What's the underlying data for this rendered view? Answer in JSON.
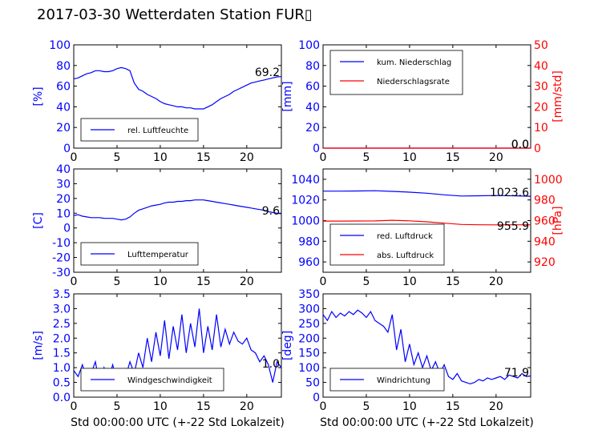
{
  "figure": {
    "title": "2017-03-30 Wetterdaten Station FUR▯",
    "xlabel": "Std 00:00:00 UTC (+-22 Std Lokalzeit)"
  },
  "chart_data": [
    {
      "id": "humidity",
      "type": "line",
      "ylabel": "[%]",
      "ylim": [
        0,
        100
      ],
      "yticks": [
        0,
        20,
        40,
        60,
        80,
        100
      ],
      "xlim": [
        0,
        24
      ],
      "xticks": [
        0,
        5,
        10,
        15,
        20
      ],
      "legend": "bottom-left",
      "last_value_label": "69.2",
      "series": [
        {
          "name": "rel. Luftfeuchte",
          "color": "#0000ff",
          "axis": "left",
          "x": [
            0,
            0.5,
            1,
            1.5,
            2,
            2.5,
            3,
            3.5,
            4,
            4.5,
            5,
            5.5,
            6,
            6.5,
            7,
            7.5,
            8,
            8.5,
            9,
            9.5,
            10,
            10.5,
            11,
            11.5,
            12,
            12.5,
            13,
            13.5,
            14,
            14.5,
            15,
            15.5,
            16,
            16.5,
            17,
            17.5,
            18,
            18.5,
            19,
            19.5,
            20,
            20.5,
            21,
            21.5,
            22,
            22.5,
            23,
            23.5,
            24
          ],
          "y": [
            67,
            68,
            70,
            72,
            73,
            75,
            75,
            74,
            74,
            75,
            77,
            78,
            77,
            75,
            63,
            57,
            55,
            52,
            50,
            48,
            45,
            43,
            42,
            41,
            40,
            40,
            39,
            39,
            38,
            38,
            38,
            40,
            42,
            45,
            48,
            50,
            52,
            55,
            57,
            59,
            61,
            63,
            64,
            65,
            66,
            67,
            68,
            69,
            69.2
          ]
        }
      ]
    },
    {
      "id": "precipitation",
      "type": "line",
      "ylabel": "[mm]",
      "ylabel_right": "[mm/std]",
      "ylim": [
        0,
        100
      ],
      "yticks": [
        0,
        20,
        40,
        60,
        80,
        100
      ],
      "ylim_right": [
        0,
        50
      ],
      "yticks_right": [
        0,
        10,
        20,
        30,
        40,
        50
      ],
      "xlim": [
        0,
        24
      ],
      "xticks": [
        0,
        5,
        10,
        15,
        20
      ],
      "legend": "top-left",
      "last_value_label": "0.0",
      "last_value_label_right": "0.0",
      "series": [
        {
          "name": "kum. Niederschlag",
          "color": "#0000ff",
          "axis": "left",
          "x": [
            0,
            24
          ],
          "y": [
            0,
            0
          ]
        },
        {
          "name": "Niederschlagsrate",
          "color": "#ff0000",
          "axis": "right",
          "x": [
            0,
            24
          ],
          "y": [
            0,
            0
          ]
        }
      ]
    },
    {
      "id": "temperature",
      "type": "line",
      "ylabel": "[C]",
      "ylim": [
        -30,
        40
      ],
      "yticks": [
        -30,
        -20,
        -10,
        0,
        10,
        20,
        30,
        40
      ],
      "xlim": [
        0,
        24
      ],
      "xticks": [
        0,
        5,
        10,
        15,
        20
      ],
      "legend": "bottom-left",
      "last_value_label": "9.6",
      "series": [
        {
          "name": "Lufttemperatur",
          "color": "#0000ff",
          "axis": "left",
          "x": [
            0,
            0.5,
            1,
            1.5,
            2,
            2.5,
            3,
            3.5,
            4,
            4.5,
            5,
            5.5,
            6,
            6.5,
            7,
            7.5,
            8,
            8.5,
            9,
            9.5,
            10,
            10.5,
            11,
            11.5,
            12,
            12.5,
            13,
            13.5,
            14,
            14.5,
            15,
            15.5,
            16,
            16.5,
            17,
            17.5,
            18,
            18.5,
            19,
            19.5,
            20,
            20.5,
            21,
            21.5,
            22,
            22.5,
            23,
            23.5,
            24
          ],
          "y": [
            8.5,
            9,
            8,
            7.5,
            7,
            7,
            7,
            6.5,
            6.5,
            6.5,
            6,
            5.5,
            6,
            7.5,
            10,
            12,
            13,
            14,
            15,
            15.5,
            16,
            17,
            17.5,
            17.5,
            18,
            18,
            18.5,
            18.5,
            19,
            19,
            19,
            18.5,
            18,
            17.5,
            17,
            16.5,
            16,
            15.5,
            15,
            14.5,
            14,
            13.5,
            13,
            12.5,
            12,
            11,
            10.5,
            10,
            9.6
          ]
        }
      ]
    },
    {
      "id": "pressure",
      "type": "line",
      "ylabel_right": "[hPa]",
      "ylim": [
        950,
        1050
      ],
      "yticks": [
        960,
        980,
        1000,
        1020,
        1040
      ],
      "ylim_right": [
        910,
        1010
      ],
      "yticks_right": [
        920,
        940,
        960,
        980,
        1000
      ],
      "xlim": [
        0,
        24
      ],
      "xticks": [
        0,
        5,
        10,
        15,
        20
      ],
      "legend": "bottom-left",
      "last_value_label": "1023.6",
      "last_value_label_right": "955.9",
      "series": [
        {
          "name": "red. Luftdruck",
          "color": "#0000ff",
          "axis": "left",
          "x": [
            0,
            2,
            4,
            6,
            8,
            10,
            12,
            14,
            16,
            18,
            20,
            22,
            24
          ],
          "y": [
            1028.5,
            1028.5,
            1028.7,
            1028.9,
            1028.3,
            1027.5,
            1026.5,
            1025,
            1023.8,
            1024,
            1024.3,
            1024,
            1023.6
          ]
        },
        {
          "name": "abs. Luftdruck",
          "color": "#ff0000",
          "axis": "right",
          "x": [
            0,
            2,
            4,
            6,
            8,
            10,
            12,
            14,
            16,
            18,
            20,
            22,
            24
          ],
          "y": [
            959.5,
            959.5,
            959.6,
            959.7,
            960.3,
            959.8,
            958.8,
            957.5,
            956.3,
            956,
            955.9,
            956,
            955.9
          ]
        }
      ]
    },
    {
      "id": "wind_speed",
      "type": "line",
      "ylabel": "[m/s]",
      "ylim": [
        0,
        3.5
      ],
      "yticks": [
        0.0,
        0.5,
        1.0,
        1.5,
        2.0,
        2.5,
        3.0,
        3.5
      ],
      "xlim": [
        0,
        24
      ],
      "xticks": [
        0,
        5,
        10,
        15,
        20
      ],
      "legend": "bottom-left",
      "last_value_label": "1.0",
      "series": [
        {
          "name": "Windgeschwindigkeit",
          "color": "#0000ff",
          "axis": "left",
          "x": [
            0,
            0.5,
            1,
            1.5,
            2,
            2.5,
            3,
            3.5,
            4,
            4.5,
            5,
            5.5,
            6,
            6.5,
            7,
            7.5,
            8,
            8.5,
            9,
            9.5,
            10,
            10.5,
            11,
            11.5,
            12,
            12.5,
            13,
            13.5,
            14,
            14.5,
            15,
            15.5,
            16,
            16.5,
            17,
            17.5,
            18,
            18.5,
            19,
            19.5,
            20,
            20.5,
            21,
            21.5,
            22,
            22.5,
            23,
            23.5,
            24
          ],
          "y": [
            0.9,
            0.7,
            1.1,
            0.6,
            0.8,
            1.2,
            0.4,
            1.0,
            0.6,
            1.1,
            0.5,
            0.9,
            0.7,
            1.2,
            0.8,
            1.5,
            1.0,
            2.0,
            1.2,
            2.2,
            1.4,
            2.6,
            1.3,
            2.4,
            1.6,
            2.8,
            1.5,
            2.5,
            1.7,
            3.0,
            1.5,
            2.4,
            1.6,
            2.8,
            1.7,
            2.3,
            1.8,
            2.2,
            1.9,
            1.8,
            2.0,
            1.6,
            1.5,
            1.2,
            1.4,
            1.1,
            0.5,
            1.2,
            1.0
          ]
        }
      ]
    },
    {
      "id": "wind_direction",
      "type": "line",
      "ylabel": "[deg]",
      "ylim": [
        0,
        350
      ],
      "yticks": [
        0,
        50,
        100,
        150,
        200,
        250,
        300,
        350
      ],
      "xlim": [
        0,
        24
      ],
      "xticks": [
        0,
        5,
        10,
        15,
        20
      ],
      "legend": "bottom-left",
      "last_value_label": "71.9",
      "series": [
        {
          "name": "Windrichtung",
          "color": "#0000ff",
          "axis": "left",
          "x": [
            0,
            0.5,
            1,
            1.5,
            2,
            2.5,
            3,
            3.5,
            4,
            4.5,
            5,
            5.5,
            6,
            6.5,
            7,
            7.5,
            8,
            8.5,
            9,
            9.5,
            10,
            10.5,
            11,
            11.5,
            12,
            12.5,
            13,
            13.5,
            14,
            14.5,
            15,
            15.5,
            16,
            16.5,
            17,
            17.5,
            18,
            18.5,
            19,
            19.5,
            20,
            20.5,
            21,
            21.5,
            22,
            22.5,
            23,
            23.5,
            24
          ],
          "y": [
            280,
            260,
            290,
            270,
            285,
            275,
            290,
            280,
            295,
            285,
            270,
            290,
            260,
            250,
            240,
            220,
            280,
            160,
            230,
            120,
            180,
            110,
            150,
            100,
            140,
            90,
            120,
            80,
            110,
            70,
            60,
            80,
            55,
            50,
            45,
            50,
            60,
            55,
            65,
            60,
            65,
            70,
            60,
            75,
            70,
            65,
            80,
            70,
            71.9
          ]
        }
      ]
    }
  ]
}
